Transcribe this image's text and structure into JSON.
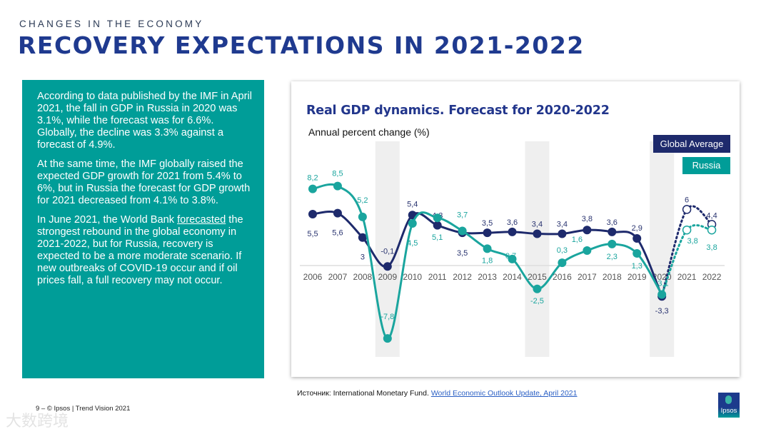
{
  "header": {
    "kicker": "CHANGES IN THE ECONOMY",
    "title": "RECOVERY EXPECTATIONS IN 2021-2022"
  },
  "panel": {
    "p1": "According to data published by the IMF in April 2021, the fall in GDP in Russia in 2020 was 3.1%, while the forecast was for 6.6%. Globally, the decline was 3.3% against a forecast of 4.9%.",
    "p2": "At the same time, the IMF globally raised the expected GDP growth for 2021 from 5.4% to 6%, but in Russia the forecast for GDP growth for 2021 decreased from 4.1% to 3.8%.",
    "p3_before": "In June 2021, the World Bank ",
    "p3_link": "forecasted",
    "p3_after": " the strongest rebound in the global economy in 2021-2022, but for Russia, recovery is expected to be a more moderate scenario. If new outbreaks of COVID-19 occur and if oil prices fall, a full recovery may not occur."
  },
  "chart_data": {
    "type": "line",
    "title": "Real GDP dynamics. Forecast for 2020-2022",
    "ylabel": "Annual percent change (%)",
    "xlabel": "",
    "categories": [
      "2006",
      "2007",
      "2008",
      "2009",
      "2010",
      "2011",
      "2012",
      "2013",
      "2014",
      "2015",
      "2016",
      "2017",
      "2018",
      "2019",
      "2020",
      "2021",
      "2022"
    ],
    "forecast_from": "2020",
    "highlighted_years": [
      "2009",
      "2015",
      "2020"
    ],
    "legend": [
      "Global Average",
      "Russia"
    ],
    "legend_position": "top-right",
    "series": [
      {
        "name": "Global Average",
        "color": "#1e2a6c",
        "values": [
          5.5,
          5.6,
          3,
          -0.1,
          5.4,
          4.3,
          3.5,
          3.5,
          3.6,
          3.4,
          3.4,
          3.8,
          3.6,
          2.9,
          -3.3,
          6,
          4.4
        ],
        "labels": [
          "5,5",
          "5,6",
          "3",
          "-0,1",
          "5,4",
          "4,3",
          "3,5",
          "3,5",
          "3,6",
          "3,4",
          "3,4",
          "3,8",
          "3,6",
          "2,9",
          "-3,3",
          "6",
          "4,4"
        ]
      },
      {
        "name": "Russia",
        "color": "#1aa59e",
        "values": [
          8.2,
          8.5,
          5.2,
          -7.8,
          4.5,
          5.1,
          3.7,
          1.8,
          0.7,
          -2.5,
          0.3,
          1.6,
          2.3,
          1.3,
          -3.1,
          3.8,
          3.8
        ],
        "labels": [
          "8,2",
          "8,5",
          "5,2",
          "-7,8",
          "4,5",
          "5,1",
          "3,7",
          "1,8",
          "0,7",
          "-2,5",
          "0,3",
          "1,6",
          "2,3",
          "1,3",
          "-3,1",
          "3,8",
          "3,8"
        ]
      }
    ]
  },
  "source": {
    "text": "Источник: International Monetary Fund. ",
    "link": "World Economic Outlook Update, April 2021"
  },
  "footer": {
    "text": "9 –  © Ipsos | Trend Vision 2021"
  },
  "logo": {
    "text": "Ipsos"
  },
  "watermark": {
    "text": "大数跨境"
  }
}
